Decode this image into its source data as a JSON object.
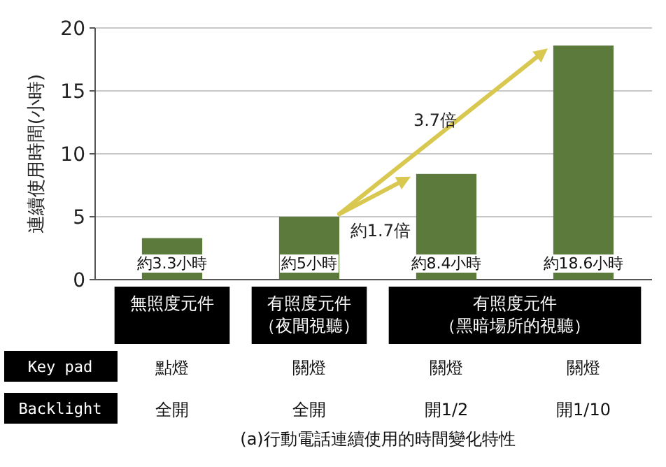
{
  "chart_data": {
    "type": "bar",
    "ylabel": "連續使用時間(小時)",
    "categories": [
      "無照度元件",
      "有照度元件（夜間視聽）",
      "有照度元件（黑暗場所的視聽）",
      null
    ],
    "values": [
      3.3,
      5,
      8.4,
      18.6
    ],
    "color": "#5b7a3c",
    "value_labels": [
      "約3.3小時",
      "約5小時",
      "約8.4小時",
      "約18.6小時"
    ],
    "ylim": [
      0,
      20
    ],
    "yticks": [
      0,
      5,
      10,
      15,
      20
    ],
    "grid": "y",
    "annotations": [
      "約1.7倍",
      "3.7倍",
      "Key pad",
      "點燈",
      "關燈",
      "關燈",
      "關燈",
      "Backlight",
      "全開",
      "全開",
      "開1/2",
      "開1/10",
      "(a)行動電話連續使用的時間變化特性"
    ]
  }
}
